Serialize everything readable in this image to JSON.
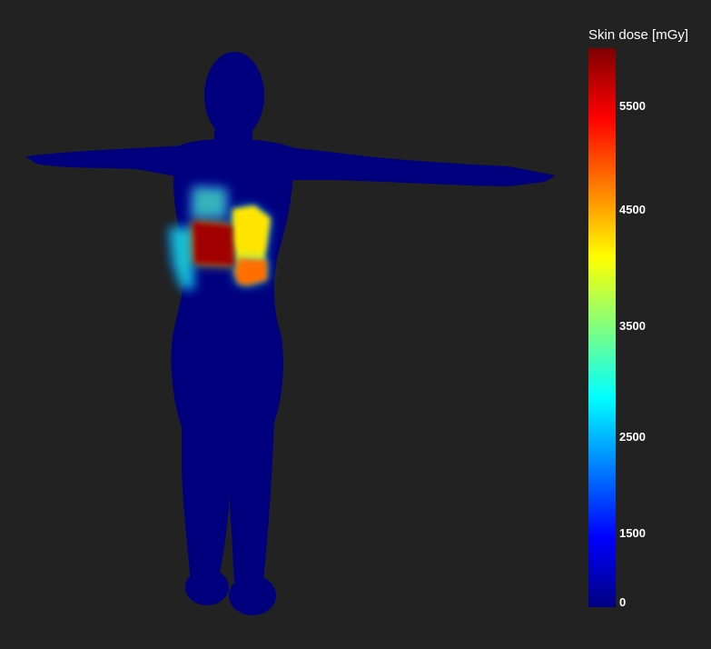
{
  "chart_data": {
    "type": "heatmap",
    "title": "Skin dose [mGy]",
    "colormap": "jet",
    "colorscale_range": [
      0,
      6000
    ],
    "colorscale_stops": [
      "#00007f",
      "#0000ff",
      "#007fff",
      "#00ffff",
      "#7fff7f",
      "#ffff00",
      "#ff7f00",
      "#ff0000",
      "#7f0000"
    ],
    "tick_labels": [
      "0",
      "1500",
      "2500",
      "3500",
      "4500",
      "5500"
    ],
    "tick_values": [
      0,
      1500,
      2500,
      3500,
      4500,
      5500
    ],
    "regions": [
      {
        "name": "peak-field",
        "dose": 5800
      },
      {
        "name": "upper-right-field",
        "dose": 3900
      },
      {
        "name": "lower-right-field",
        "dose": 4600
      },
      {
        "name": "upper-left-field",
        "dose": 2700
      },
      {
        "name": "left-edge-field",
        "dose": 2400
      },
      {
        "name": "background",
        "dose": 0
      }
    ]
  },
  "colors": {
    "background": "#222222",
    "body": "#00007f"
  }
}
